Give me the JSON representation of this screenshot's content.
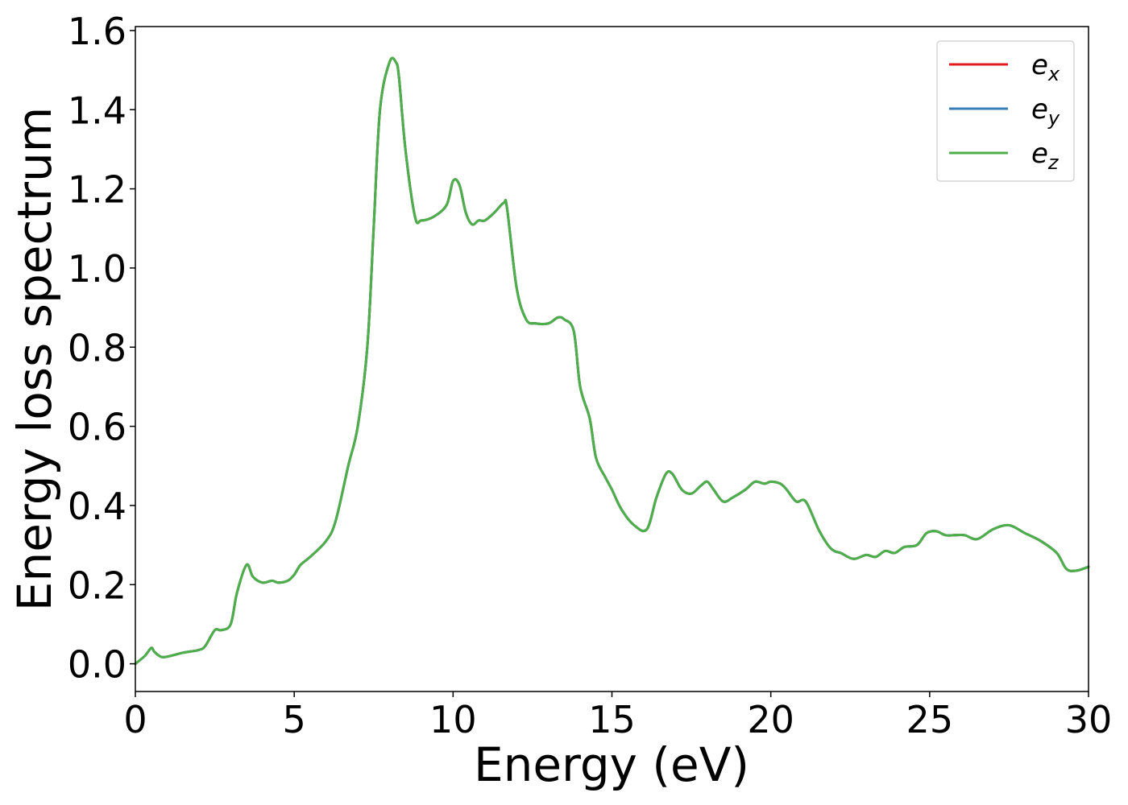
{
  "chart_data": {
    "type": "line",
    "title": "",
    "xlabel": "Energy (eV)",
    "ylabel": "Energy loss spectrum",
    "xlim": [
      0,
      30
    ],
    "ylim": [
      -0.07,
      1.61
    ],
    "xticks": [
      0,
      5,
      10,
      15,
      20,
      25,
      30
    ],
    "xtick_labels": [
      "0",
      "5",
      "10",
      "15",
      "20",
      "25",
      "30"
    ],
    "yticks": [
      0.0,
      0.2,
      0.4,
      0.6,
      0.8,
      1.0,
      1.2,
      1.4,
      1.6
    ],
    "ytick_labels": [
      "0.0",
      "0.2",
      "0.4",
      "0.6",
      "0.8",
      "1.0",
      "1.2",
      "1.4",
      "1.6"
    ],
    "grid": false,
    "legend_position": "top-right",
    "x": [
      0,
      0.3,
      0.5,
      0.6,
      0.8,
      1.0,
      1.5,
      2.0,
      2.2,
      2.5,
      2.7,
      3.0,
      3.2,
      3.5,
      3.7,
      4.0,
      4.3,
      4.5,
      4.8,
      5.0,
      5.2,
      5.5,
      6.0,
      6.3,
      6.7,
      7.0,
      7.3,
      7.5,
      7.7,
      8.0,
      8.2,
      8.3,
      8.5,
      8.8,
      9.0,
      9.4,
      9.8,
      10.0,
      10.2,
      10.4,
      10.6,
      10.8,
      11.0,
      11.3,
      11.6,
      11.7,
      12.0,
      12.3,
      12.6,
      13.0,
      13.3,
      13.5,
      13.8,
      14.0,
      14.3,
      14.5,
      14.8,
      15.0,
      15.3,
      15.7,
      16.1,
      16.4,
      16.7,
      16.9,
      17.2,
      17.5,
      17.8,
      18.0,
      18.2,
      18.5,
      18.8,
      19.2,
      19.5,
      19.8,
      20.0,
      20.3,
      20.5,
      20.8,
      21.1,
      21.5,
      21.8,
      22.0,
      22.2,
      22.6,
      23.0,
      23.3,
      23.6,
      23.9,
      24.2,
      24.6,
      24.9,
      25.2,
      25.5,
      25.8,
      26.1,
      26.5,
      27.0,
      27.5,
      28.0,
      28.5,
      29.0,
      29.3,
      29.6,
      30.0
    ],
    "series": [
      {
        "name": "e",
        "name_subscript": "x",
        "color": "#e41a1c",
        "values": [
          0.0,
          0.02,
          0.04,
          0.03,
          0.018,
          0.018,
          0.028,
          0.035,
          0.045,
          0.085,
          0.085,
          0.1,
          0.18,
          0.25,
          0.22,
          0.205,
          0.21,
          0.205,
          0.21,
          0.225,
          0.25,
          0.27,
          0.31,
          0.36,
          0.5,
          0.6,
          0.8,
          1.1,
          1.4,
          1.52,
          1.52,
          1.48,
          1.3,
          1.13,
          1.12,
          1.13,
          1.16,
          1.22,
          1.21,
          1.14,
          1.11,
          1.12,
          1.12,
          1.14,
          1.165,
          1.15,
          0.95,
          0.87,
          0.86,
          0.86,
          0.875,
          0.87,
          0.84,
          0.7,
          0.62,
          0.52,
          0.47,
          0.44,
          0.39,
          0.35,
          0.34,
          0.42,
          0.48,
          0.48,
          0.44,
          0.43,
          0.45,
          0.46,
          0.44,
          0.41,
          0.42,
          0.44,
          0.46,
          0.455,
          0.46,
          0.455,
          0.44,
          0.41,
          0.41,
          0.34,
          0.3,
          0.285,
          0.28,
          0.265,
          0.275,
          0.27,
          0.285,
          0.28,
          0.295,
          0.3,
          0.33,
          0.335,
          0.325,
          0.325,
          0.325,
          0.315,
          0.34,
          0.35,
          0.33,
          0.31,
          0.28,
          0.24,
          0.235,
          0.245
        ]
      },
      {
        "name": "e",
        "name_subscript": "y",
        "color": "#377eb8",
        "values": [
          0.0,
          0.02,
          0.04,
          0.03,
          0.018,
          0.018,
          0.028,
          0.035,
          0.045,
          0.085,
          0.085,
          0.1,
          0.18,
          0.25,
          0.22,
          0.205,
          0.21,
          0.205,
          0.21,
          0.225,
          0.25,
          0.27,
          0.31,
          0.36,
          0.5,
          0.6,
          0.8,
          1.1,
          1.4,
          1.52,
          1.52,
          1.48,
          1.3,
          1.13,
          1.12,
          1.13,
          1.16,
          1.22,
          1.21,
          1.14,
          1.11,
          1.12,
          1.12,
          1.14,
          1.165,
          1.15,
          0.95,
          0.87,
          0.86,
          0.86,
          0.875,
          0.87,
          0.84,
          0.7,
          0.62,
          0.52,
          0.47,
          0.44,
          0.39,
          0.35,
          0.34,
          0.42,
          0.48,
          0.48,
          0.44,
          0.43,
          0.45,
          0.46,
          0.44,
          0.41,
          0.42,
          0.44,
          0.46,
          0.455,
          0.46,
          0.455,
          0.44,
          0.41,
          0.41,
          0.34,
          0.3,
          0.285,
          0.28,
          0.265,
          0.275,
          0.27,
          0.285,
          0.28,
          0.295,
          0.3,
          0.33,
          0.335,
          0.325,
          0.325,
          0.325,
          0.315,
          0.34,
          0.35,
          0.33,
          0.31,
          0.28,
          0.24,
          0.235,
          0.245
        ]
      },
      {
        "name": "e",
        "name_subscript": "z",
        "color": "#4daf4a",
        "values": [
          0.0,
          0.02,
          0.04,
          0.03,
          0.018,
          0.018,
          0.028,
          0.035,
          0.045,
          0.085,
          0.085,
          0.1,
          0.18,
          0.25,
          0.22,
          0.205,
          0.21,
          0.205,
          0.21,
          0.225,
          0.25,
          0.27,
          0.31,
          0.36,
          0.5,
          0.6,
          0.8,
          1.1,
          1.4,
          1.52,
          1.52,
          1.48,
          1.3,
          1.13,
          1.12,
          1.13,
          1.16,
          1.22,
          1.21,
          1.14,
          1.11,
          1.12,
          1.12,
          1.14,
          1.165,
          1.15,
          0.95,
          0.87,
          0.86,
          0.86,
          0.875,
          0.87,
          0.84,
          0.7,
          0.62,
          0.52,
          0.47,
          0.44,
          0.39,
          0.35,
          0.34,
          0.42,
          0.48,
          0.48,
          0.44,
          0.43,
          0.45,
          0.46,
          0.44,
          0.41,
          0.42,
          0.44,
          0.46,
          0.455,
          0.46,
          0.455,
          0.44,
          0.41,
          0.41,
          0.34,
          0.3,
          0.285,
          0.28,
          0.265,
          0.275,
          0.27,
          0.285,
          0.28,
          0.295,
          0.3,
          0.33,
          0.335,
          0.325,
          0.325,
          0.325,
          0.315,
          0.34,
          0.35,
          0.33,
          0.31,
          0.28,
          0.24,
          0.235,
          0.245
        ]
      }
    ]
  }
}
